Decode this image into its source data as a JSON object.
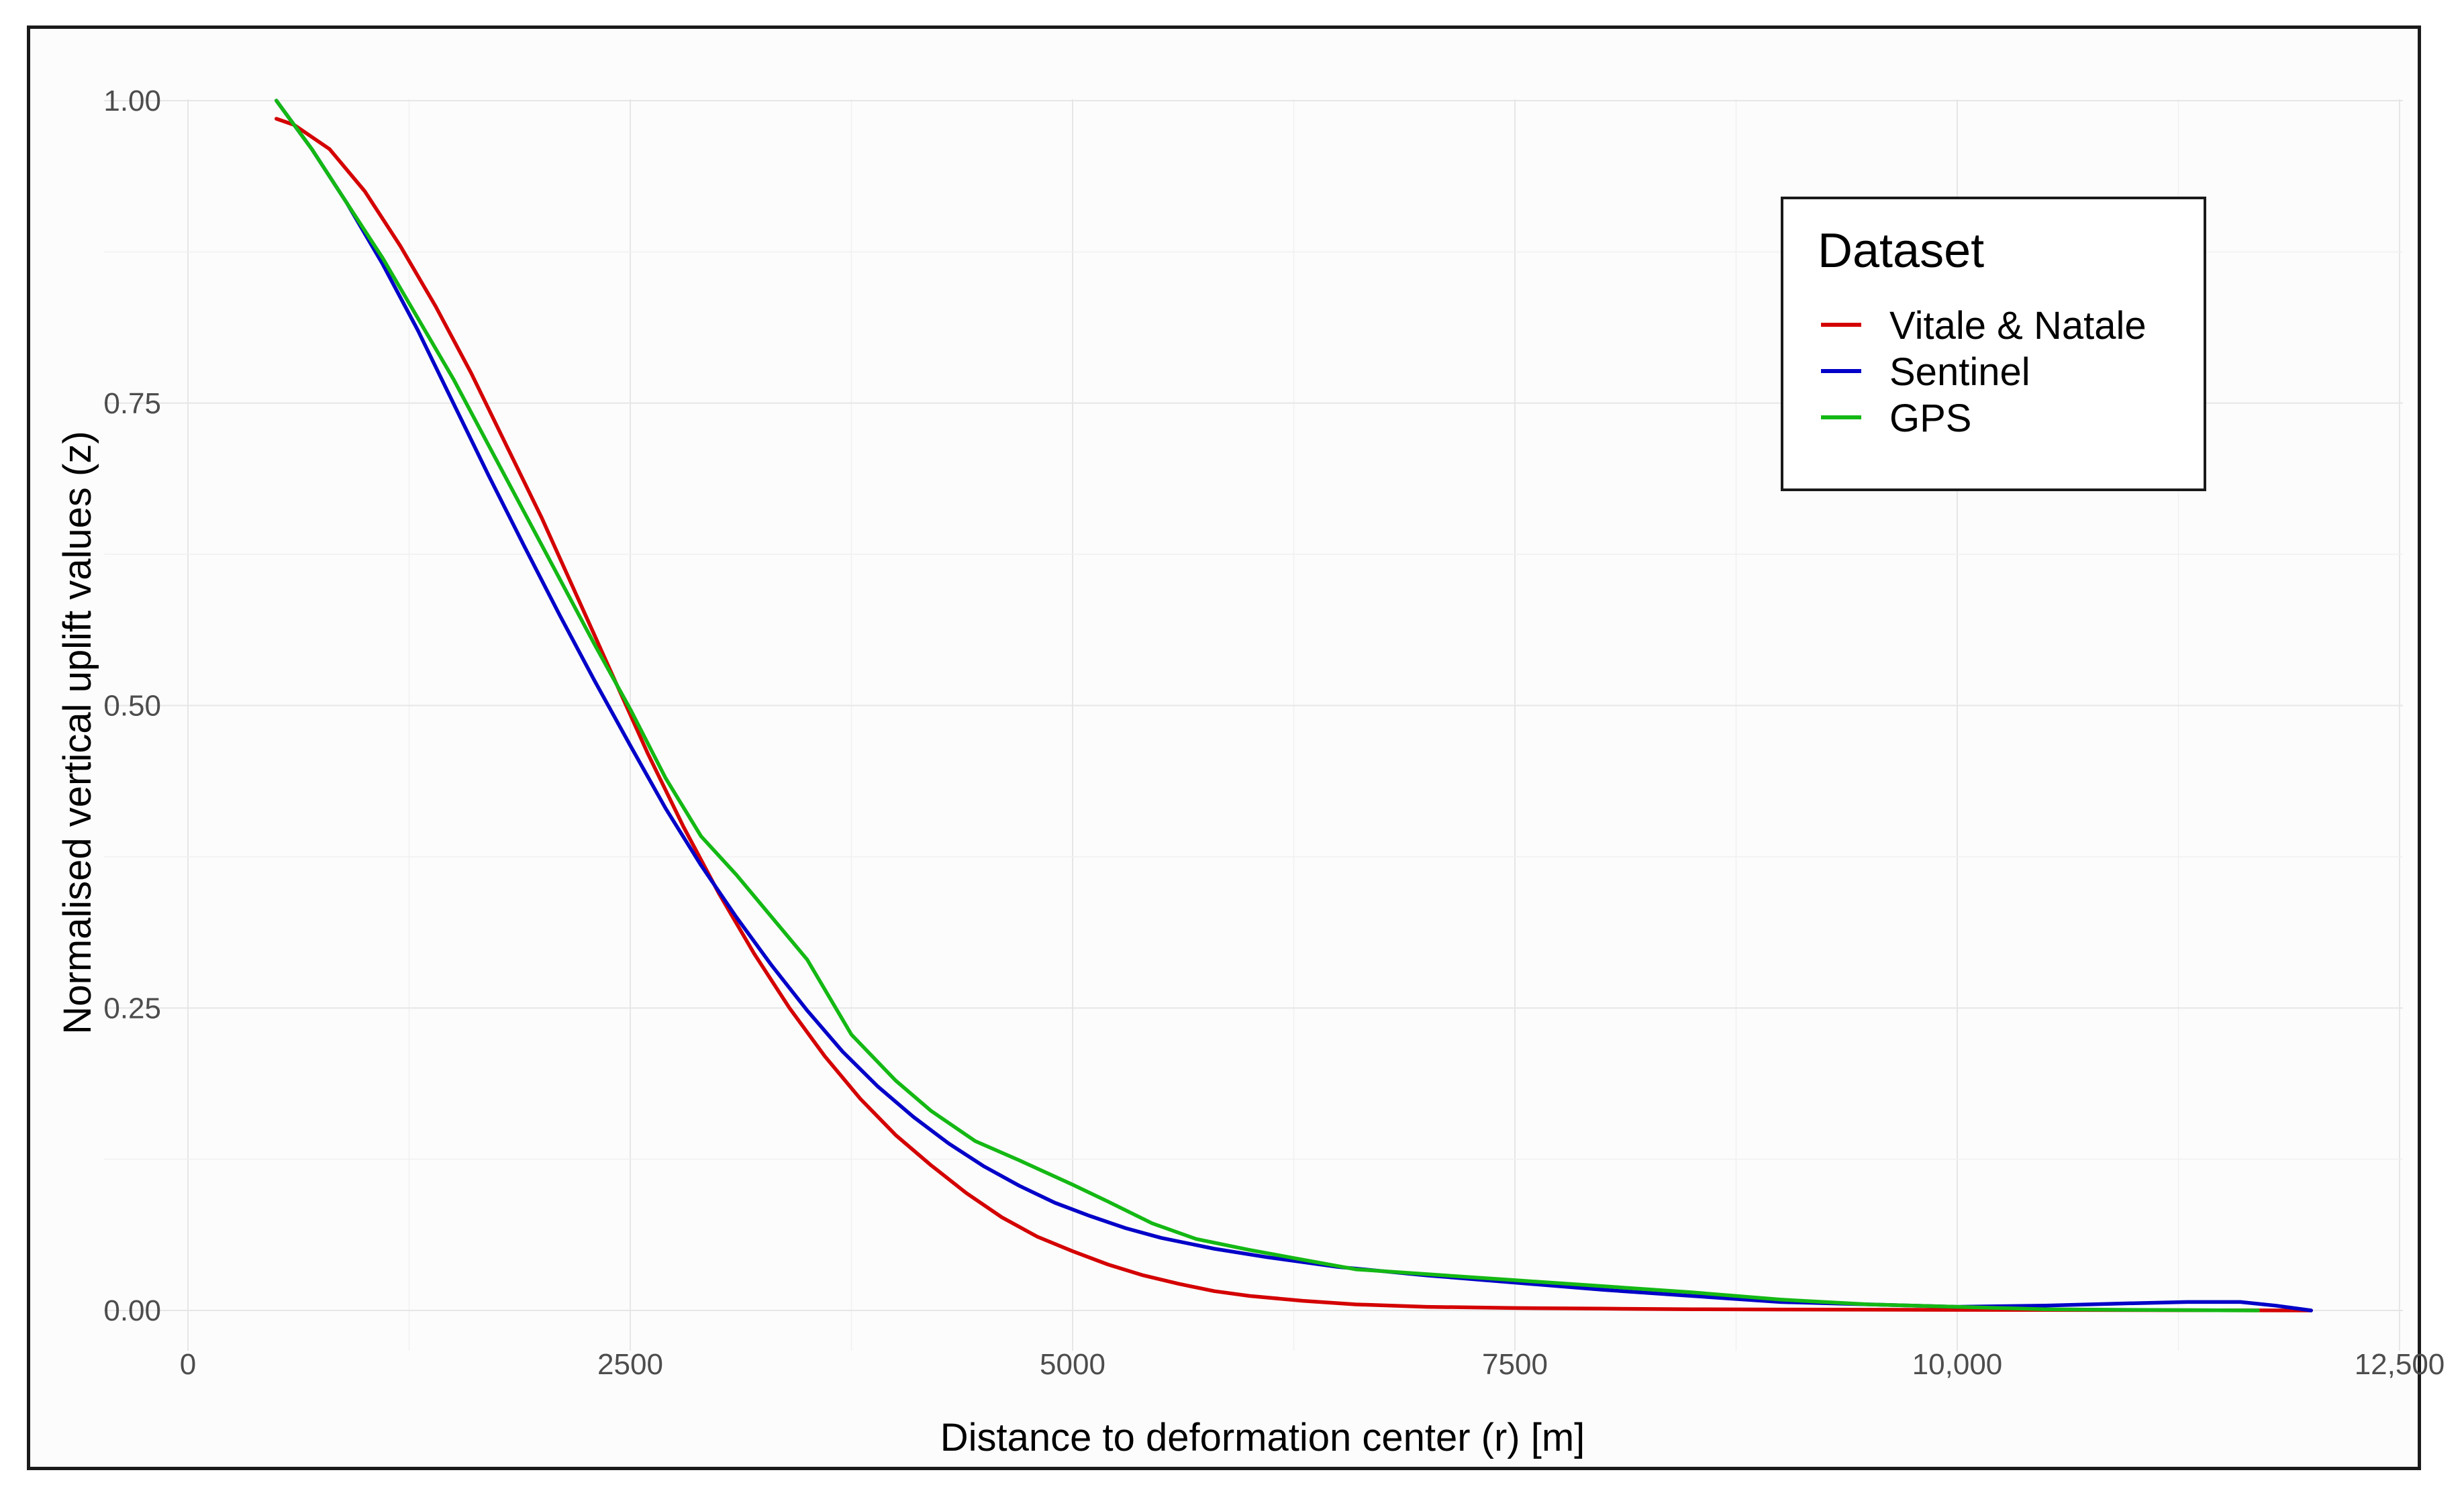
{
  "chart_data": {
    "type": "line",
    "xlabel": "Distance to deformation center (r) [m]",
    "ylabel": "Normalised vertical uplift values (z)",
    "xlim": [
      0,
      12500
    ],
    "ylim": [
      0,
      1.0
    ],
    "x_ticks": [
      0,
      2500,
      5000,
      7500,
      10000,
      12500
    ],
    "x_tick_labels": [
      "0",
      "2500",
      "5000",
      "7500",
      "10,000",
      "12,500"
    ],
    "y_ticks": [
      0,
      0.25,
      0.5,
      0.75,
      1.0
    ],
    "y_tick_labels": [
      "0.00",
      "0.25",
      "0.50",
      "0.75",
      "1.00"
    ],
    "grid": true,
    "legend": {
      "title": "Dataset",
      "position": "top-right"
    },
    "series": [
      {
        "name": "Vitale & Natale",
        "color": "#d40000",
        "points": [
          [
            500,
            0.985
          ],
          [
            600,
            0.98
          ],
          [
            800,
            0.96
          ],
          [
            1000,
            0.925
          ],
          [
            1200,
            0.88
          ],
          [
            1400,
            0.83
          ],
          [
            1600,
            0.775
          ],
          [
            1800,
            0.715
          ],
          [
            2000,
            0.655
          ],
          [
            2200,
            0.59
          ],
          [
            2400,
            0.525
          ],
          [
            2600,
            0.46
          ],
          [
            2800,
            0.4
          ],
          [
            3000,
            0.345
          ],
          [
            3200,
            0.295
          ],
          [
            3400,
            0.25
          ],
          [
            3600,
            0.21
          ],
          [
            3800,
            0.175
          ],
          [
            4000,
            0.145
          ],
          [
            4200,
            0.12
          ],
          [
            4400,
            0.097
          ],
          [
            4600,
            0.077
          ],
          [
            4800,
            0.061
          ],
          [
            5000,
            0.049
          ],
          [
            5200,
            0.038
          ],
          [
            5400,
            0.029
          ],
          [
            5600,
            0.022
          ],
          [
            5800,
            0.016
          ],
          [
            6000,
            0.012
          ],
          [
            6300,
            0.008
          ],
          [
            6600,
            0.005
          ],
          [
            7000,
            0.003
          ],
          [
            7500,
            0.002
          ],
          [
            8000,
            0.0015
          ],
          [
            8500,
            0.001
          ],
          [
            9000,
            0.0008
          ],
          [
            10000,
            0.0005
          ],
          [
            11000,
            0.0003
          ],
          [
            12000,
            0.0
          ]
        ]
      },
      {
        "name": "Sentinel",
        "color": "#0000c8",
        "points": [
          [
            500,
            1.0
          ],
          [
            700,
            0.96
          ],
          [
            900,
            0.915
          ],
          [
            1100,
            0.865
          ],
          [
            1300,
            0.81
          ],
          [
            1500,
            0.75
          ],
          [
            1700,
            0.69
          ],
          [
            1900,
            0.632
          ],
          [
            2100,
            0.575
          ],
          [
            2300,
            0.52
          ],
          [
            2500,
            0.467
          ],
          [
            2700,
            0.415
          ],
          [
            2900,
            0.368
          ],
          [
            3100,
            0.325
          ],
          [
            3300,
            0.285
          ],
          [
            3500,
            0.248
          ],
          [
            3700,
            0.214
          ],
          [
            3900,
            0.185
          ],
          [
            4100,
            0.16
          ],
          [
            4300,
            0.138
          ],
          [
            4500,
            0.119
          ],
          [
            4700,
            0.103
          ],
          [
            4900,
            0.089
          ],
          [
            5100,
            0.078
          ],
          [
            5300,
            0.068
          ],
          [
            5500,
            0.06
          ],
          [
            5800,
            0.051
          ],
          [
            6100,
            0.044
          ],
          [
            6500,
            0.036
          ],
          [
            7000,
            0.029
          ],
          [
            7500,
            0.023
          ],
          [
            8000,
            0.017
          ],
          [
            8500,
            0.012
          ],
          [
            9000,
            0.007
          ],
          [
            9500,
            0.005
          ],
          [
            10000,
            0.003
          ],
          [
            10500,
            0.004
          ],
          [
            11000,
            0.006
          ],
          [
            11300,
            0.007
          ],
          [
            11600,
            0.007
          ],
          [
            11800,
            0.004
          ],
          [
            12000,
            0.0
          ]
        ]
      },
      {
        "name": "GPS",
        "color": "#14b814",
        "points": [
          [
            500,
            1.0
          ],
          [
            700,
            0.96
          ],
          [
            900,
            0.915
          ],
          [
            1100,
            0.87
          ],
          [
            1300,
            0.82
          ],
          [
            1500,
            0.77
          ],
          [
            1700,
            0.715
          ],
          [
            1900,
            0.66
          ],
          [
            2100,
            0.605
          ],
          [
            2300,
            0.55
          ],
          [
            2500,
            0.497
          ],
          [
            2700,
            0.44
          ],
          [
            2900,
            0.392
          ],
          [
            3100,
            0.36
          ],
          [
            3300,
            0.325
          ],
          [
            3500,
            0.29
          ],
          [
            3750,
            0.228
          ],
          [
            4000,
            0.19
          ],
          [
            4200,
            0.165
          ],
          [
            4450,
            0.14
          ],
          [
            4700,
            0.124
          ],
          [
            5000,
            0.104
          ],
          [
            5200,
            0.09
          ],
          [
            5450,
            0.072
          ],
          [
            5700,
            0.059
          ],
          [
            6000,
            0.05
          ],
          [
            6300,
            0.042
          ],
          [
            6600,
            0.034
          ],
          [
            7000,
            0.03
          ],
          [
            7500,
            0.025
          ],
          [
            8000,
            0.02
          ],
          [
            8500,
            0.015
          ],
          [
            9000,
            0.009
          ],
          [
            9500,
            0.005
          ],
          [
            10000,
            0.003
          ],
          [
            10500,
            0.001
          ],
          [
            11000,
            0.0005
          ],
          [
            11700,
            0.0
          ]
        ]
      }
    ]
  }
}
